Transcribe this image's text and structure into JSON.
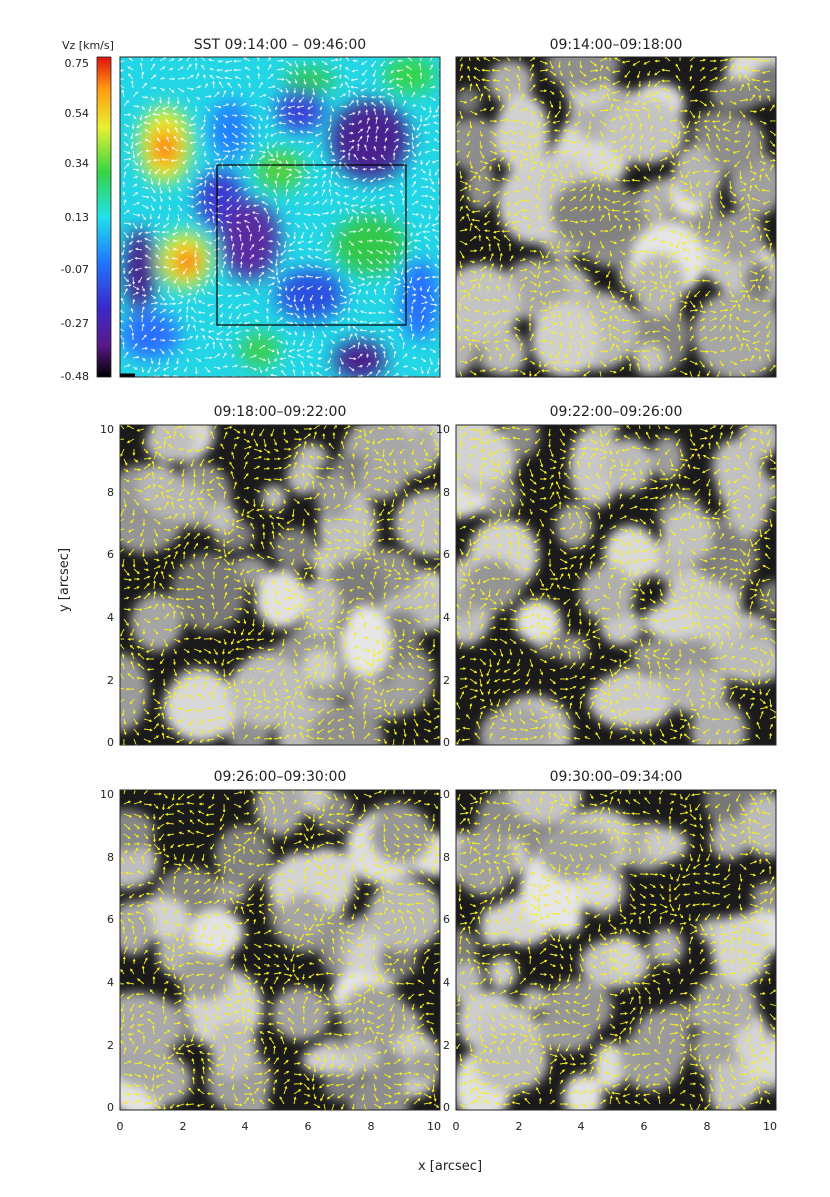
{
  "figure": {
    "x_label": "x [arcsec]",
    "y_label": "y [arcsec]",
    "x_ticks": [
      "0",
      "2",
      "4",
      "6",
      "8",
      "10"
    ],
    "y_ticks": [
      "0",
      "2",
      "4",
      "6",
      "8",
      "10"
    ],
    "colorbar": {
      "label": "Vz [km/s]",
      "ticks": [
        "0.75",
        "0.54",
        "0.34",
        "0.13",
        "-0.07",
        "-0.27",
        "-0.48"
      ]
    },
    "panels": [
      {
        "title": "SST   09:14:00  –  09:46:00"
      },
      {
        "title": "09:14:00–09:18:00"
      },
      {
        "title": "09:18:00–09:22:00"
      },
      {
        "title": "09:22:00–09:26:00"
      },
      {
        "title": "09:26:00–09:30:00"
      },
      {
        "title": "09:30:00–09:34:00"
      }
    ]
  },
  "colors": {
    "vector_overlay": "#f4f020",
    "vector_mean_flow": "#ffffff",
    "box": "#000000"
  },
  "chart_data": {
    "type": "heatmap",
    "description_panels": 6,
    "xlim": [
      0,
      10.2
    ],
    "ylim": [
      0,
      10.2
    ],
    "colorbar_range": [
      -0.48,
      0.75
    ],
    "colorbar_unit": "km/s"
  }
}
